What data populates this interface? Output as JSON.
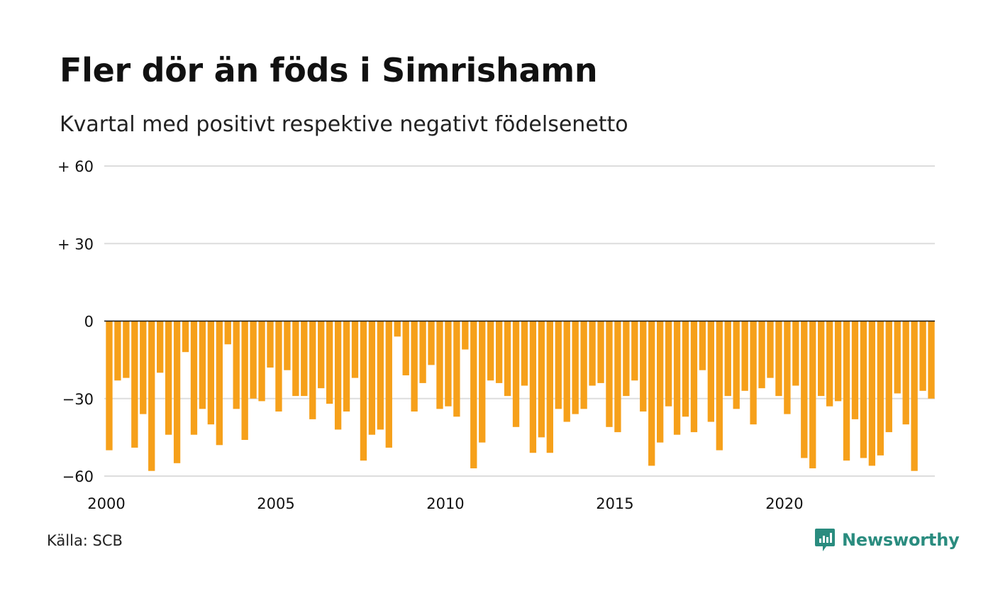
{
  "title": "Fler dör än föds i Simrishamn",
  "subtitle": "Kvartal med positivt respektive negativt födelsenetto",
  "source": "Källa: SCB",
  "brand": {
    "name": "Newsworthy",
    "icon": "newsworthy-logo-icon",
    "color": "#2a8c7f"
  },
  "colors": {
    "bar": "#f6a01a",
    "grid": "#dddddd",
    "zero_line": "#111111",
    "text": "#111111"
  },
  "chart_data": {
    "type": "bar",
    "title": "Fler dör än föds i Simrishamn",
    "subtitle": "Kvartal med positivt respektive negativt födelsenetto",
    "xlabel": "",
    "ylabel": "",
    "ylim": [
      -60,
      60
    ],
    "grid": true,
    "yticks": [
      {
        "value": 60,
        "label": "+ 60"
      },
      {
        "value": 30,
        "label": "+ 30"
      },
      {
        "value": 0,
        "label": "0"
      },
      {
        "value": -30,
        "label": "−30"
      },
      {
        "value": -60,
        "label": "−60"
      }
    ],
    "xticks": [
      {
        "value": 2000,
        "label": "2000"
      },
      {
        "value": 2005,
        "label": "2005"
      },
      {
        "value": 2010,
        "label": "2010"
      },
      {
        "value": 2015,
        "label": "2015"
      },
      {
        "value": 2020,
        "label": "2020"
      }
    ],
    "start_year": 2000,
    "periods_per_year": 4,
    "values": [
      -50,
      -23,
      -22,
      -49,
      -36,
      -58,
      -20,
      -44,
      -55,
      -12,
      -44,
      -34,
      -40,
      -48,
      -9,
      -34,
      -46,
      -30,
      -31,
      -18,
      -35,
      -19,
      -29,
      -29,
      -38,
      -26,
      -32,
      -42,
      -35,
      -22,
      -54,
      -44,
      -42,
      -49,
      -6,
      -21,
      -35,
      -24,
      -17,
      -34,
      -33,
      -37,
      -11,
      -57,
      -47,
      -23,
      -24,
      -29,
      -41,
      -25,
      -51,
      -45,
      -51,
      -34,
      -39,
      -36,
      -34,
      -25,
      -24,
      -41,
      -43,
      -29,
      -23,
      -35,
      -56,
      -47,
      -33,
      -44,
      -37,
      -43,
      -19,
      -39,
      -50,
      -29,
      -34,
      -27,
      -40,
      -26,
      -22,
      -29,
      -36,
      -25,
      -53,
      -57,
      -29,
      -33,
      -31,
      -54,
      -38,
      -53,
      -56,
      -52,
      -43,
      -28,
      -40,
      -58,
      -27,
      -30
    ]
  }
}
